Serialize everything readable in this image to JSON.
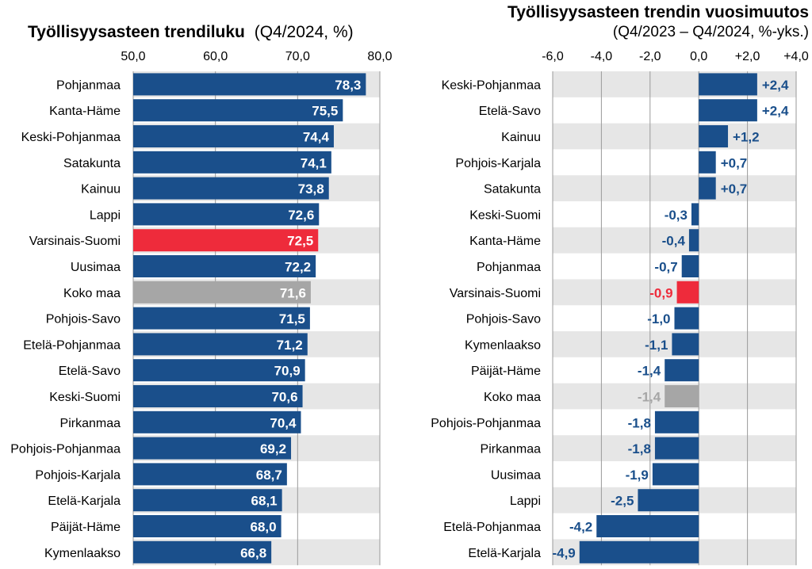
{
  "colors": {
    "bar": "#1a4f8b",
    "highlight": "#ee2b3b",
    "national": "#a6a6a6",
    "band": "#e6e6e6",
    "grid": "#9a9a9a"
  },
  "chart_data": [
    {
      "type": "bar",
      "orientation": "horizontal",
      "title": "Työllisyysasteen trendiluku",
      "subtitle": "(Q4/2024, %)",
      "xlim": [
        50,
        80
      ],
      "ticks": [
        "50,0",
        "60,0",
        "70,0",
        "80,0"
      ],
      "tick_values": [
        50,
        60,
        70,
        80
      ],
      "grid": true,
      "categories": [
        "Pohjanmaa",
        "Kanta-Häme",
        "Keski-Pohjanmaa",
        "Satakunta",
        "Kainuu",
        "Lappi",
        "Varsinais-Suomi",
        "Uusimaa",
        "Koko maa",
        "Pohjois-Savo",
        "Etelä-Pohjanmaa",
        "Etelä-Savo",
        "Keski-Suomi",
        "Pirkanmaa",
        "Pohjois-Pohjanmaa",
        "Pohjois-Karjala",
        "Etelä-Karjala",
        "Päijät-Häme",
        "Kymenlaakso"
      ],
      "values": [
        78.3,
        75.5,
        74.4,
        74.1,
        73.8,
        72.6,
        72.5,
        72.2,
        71.6,
        71.5,
        71.2,
        70.9,
        70.6,
        70.4,
        69.2,
        68.7,
        68.1,
        68.0,
        66.8
      ],
      "labels": [
        "78,3",
        "75,5",
        "74,4",
        "74,1",
        "73,8",
        "72,6",
        "72,5",
        "72,2",
        "71,6",
        "71,5",
        "71,2",
        "70,9",
        "70,6",
        "70,4",
        "69,2",
        "68,7",
        "68,1",
        "68,0",
        "66,8"
      ],
      "highlight": "Varsinais-Suomi",
      "national": "Koko maa"
    },
    {
      "type": "bar",
      "orientation": "horizontal",
      "title": "Työllisyysasteen trendin vuosimuutos",
      "subtitle": "(Q4/2023 – Q4/2024, %-yks.)",
      "xlim": [
        -6,
        4
      ],
      "ticks": [
        "-6,0",
        "-4,0",
        "-2,0",
        "0,0",
        "+2,0",
        "+4,0"
      ],
      "tick_values": [
        -6,
        -4,
        -2,
        0,
        2,
        4
      ],
      "grid": true,
      "categories": [
        "Keski-Pohjanmaa",
        "Etelä-Savo",
        "Kainuu",
        "Pohjois-Karjala",
        "Satakunta",
        "Keski-Suomi",
        "Kanta-Häme",
        "Pohjanmaa",
        "Varsinais-Suomi",
        "Pohjois-Savo",
        "Kymenlaakso",
        "Päijät-Häme",
        "Koko maa",
        "Pohjois-Pohjanmaa",
        "Pirkanmaa",
        "Uusimaa",
        "Lappi",
        "Etelä-Pohjanmaa",
        "Etelä-Karjala"
      ],
      "values": [
        2.4,
        2.4,
        1.2,
        0.7,
        0.7,
        -0.3,
        -0.4,
        -0.7,
        -0.9,
        -1.0,
        -1.1,
        -1.4,
        -1.4,
        -1.8,
        -1.8,
        -1.9,
        -2.5,
        -4.2,
        -4.9
      ],
      "labels": [
        "+2,4",
        "+2,4",
        "+1,2",
        "+0,7",
        "+0,7",
        "-0,3",
        "-0,4",
        "-0,7",
        "-0,9",
        "-1,0",
        "-1,1",
        "-1,4",
        "-1,4",
        "-1,8",
        "-1,8",
        "-1,9",
        "-2,5",
        "-4,2",
        "-4,9"
      ],
      "highlight": "Varsinais-Suomi",
      "national": "Koko maa"
    }
  ]
}
